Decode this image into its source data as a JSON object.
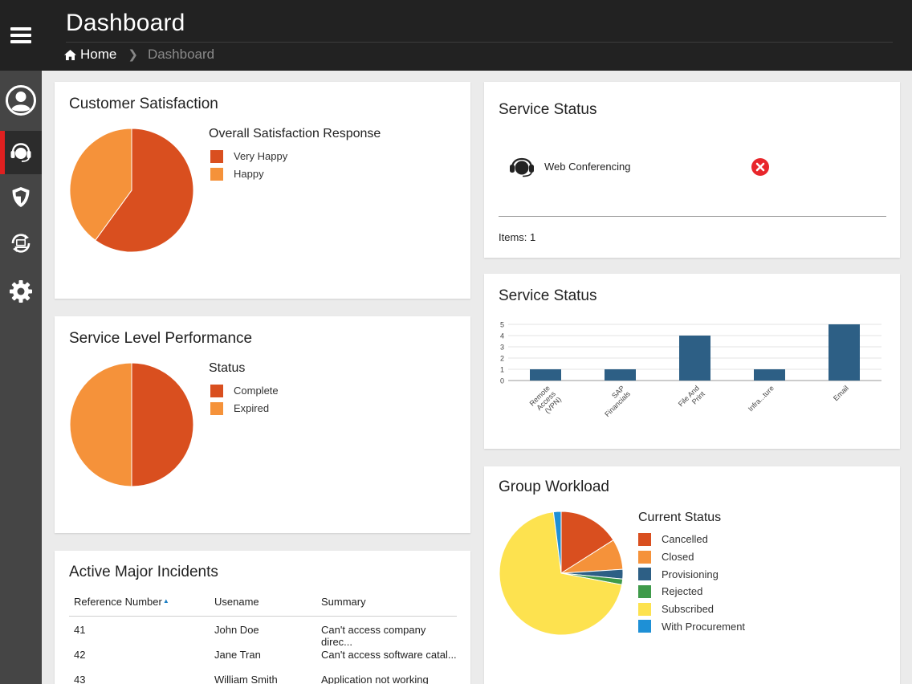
{
  "header": {
    "title": "Dashboard",
    "breadcrumb": {
      "home": "Home",
      "current": "Dashboard"
    }
  },
  "sidebar": {
    "items": [
      {
        "name": "profile",
        "icon": "user-circle-icon",
        "active": false
      },
      {
        "name": "service-desk",
        "icon": "headset-icon",
        "active": true
      },
      {
        "name": "security",
        "icon": "shield-icon",
        "active": false
      },
      {
        "name": "devices",
        "icon": "device-sync-icon",
        "active": false
      },
      {
        "name": "settings",
        "icon": "gear-icon",
        "active": false
      }
    ],
    "accent_color": "#e02020"
  },
  "customer_satisfaction": {
    "title": "Customer Satisfaction",
    "legend_title": "Overall Satisfaction Response",
    "legend": [
      {
        "label": "Very Happy",
        "color": "#d94f1f"
      },
      {
        "label": "Happy",
        "color": "#f5923a"
      }
    ]
  },
  "service_level": {
    "title": "Service Level Performance",
    "legend_title": "Status",
    "legend": [
      {
        "label": "Complete",
        "color": "#d94f1f"
      },
      {
        "label": "Expired",
        "color": "#f5923a"
      }
    ]
  },
  "incidents": {
    "title": "Active Major Incidents",
    "columns": [
      "Reference Number",
      "Usename",
      "Summary"
    ],
    "rows": [
      {
        "ref": "41",
        "user": "John Doe",
        "summary": "Can't access company direc..."
      },
      {
        "ref": "42",
        "user": "Jane Tran",
        "summary": "Can't access software catal..."
      },
      {
        "ref": "43",
        "user": "William Smith",
        "summary": "Application not working"
      }
    ]
  },
  "service_status_list": {
    "title": "Service Status",
    "items": [
      {
        "name": "Web Conferencing",
        "icon": "headset-icon",
        "status": "error",
        "status_icon": "error-x-icon"
      }
    ],
    "footer": "Items: 1"
  },
  "service_status_chart": {
    "title": "Service Status"
  },
  "group_workload": {
    "title": "Group Workload",
    "legend_title": "Current Status",
    "legend": [
      {
        "label": "Cancelled",
        "color": "#d94f1f"
      },
      {
        "label": "Closed",
        "color": "#f5923a"
      },
      {
        "label": "Provisioning",
        "color": "#2d5f85"
      },
      {
        "label": "Rejected",
        "color": "#3f9a4a"
      },
      {
        "label": "Subscribed",
        "color": "#fde24f"
      },
      {
        "label": "With Procurement",
        "color": "#1e90d6"
      }
    ]
  },
  "chart_data": [
    {
      "type": "pie",
      "title": "Customer Satisfaction",
      "legend_title": "Overall Satisfaction Response",
      "categories": [
        "Very Happy",
        "Happy"
      ],
      "values": [
        60,
        40
      ],
      "colors": [
        "#d94f1f",
        "#f5923a"
      ]
    },
    {
      "type": "pie",
      "title": "Service Level Performance",
      "legend_title": "Status",
      "categories": [
        "Complete",
        "Expired"
      ],
      "values": [
        50,
        50
      ],
      "colors": [
        "#d94f1f",
        "#f5923a"
      ]
    },
    {
      "type": "bar",
      "title": "Service Status",
      "categories": [
        [
          "Remote",
          "Access",
          "(VPN)"
        ],
        [
          "SAP",
          "Financials"
        ],
        [
          "File And",
          "Print"
        ],
        [
          "Infra...ture"
        ],
        [
          "Email"
        ]
      ],
      "values": [
        1,
        1,
        4,
        1,
        5
      ],
      "ylim": [
        0,
        5
      ],
      "yticks": [
        0,
        1,
        2,
        3,
        4,
        5
      ],
      "grid": true,
      "color": "#2d5f85"
    },
    {
      "type": "pie",
      "title": "Group Workload",
      "legend_title": "Current Status",
      "categories": [
        "Cancelled",
        "Closed",
        "Provisioning",
        "Rejected",
        "Subscribed",
        "With Procurement"
      ],
      "values": [
        16,
        8,
        2.5,
        1.5,
        70,
        2
      ],
      "colors": [
        "#d94f1f",
        "#f5923a",
        "#2d5f85",
        "#3f9a4a",
        "#fde24f",
        "#1e90d6"
      ]
    }
  ]
}
